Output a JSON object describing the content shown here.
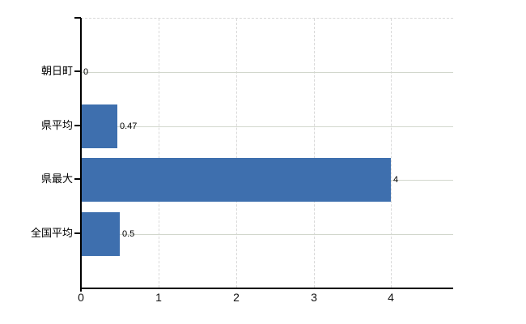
{
  "chart_data": {
    "type": "bar",
    "orientation": "horizontal",
    "title": "",
    "categories": [
      "朝日町",
      "県平均",
      "県最大",
      "全国平均"
    ],
    "values": [
      0,
      0.47,
      4,
      0.5
    ],
    "value_labels": [
      "0",
      "0.47",
      "4",
      "0.5"
    ],
    "x_tick_labels": [
      "0",
      "1",
      "2",
      "3",
      "4"
    ],
    "x_tick_values": [
      0,
      1,
      2,
      3,
      4
    ],
    "xlim": [
      0,
      4.8
    ],
    "ylabel": "",
    "xlabel": "",
    "grid": "on",
    "legend_position": "none",
    "colors": {
      "bar": "#3e6fae",
      "axis": "#000000",
      "horizontal_grid": "#d2d7cd",
      "vertical_grid": "#d9d9d9",
      "plot_top_border": "#d8d8d8",
      "text": "#000000",
      "background": "#ffffff"
    }
  }
}
